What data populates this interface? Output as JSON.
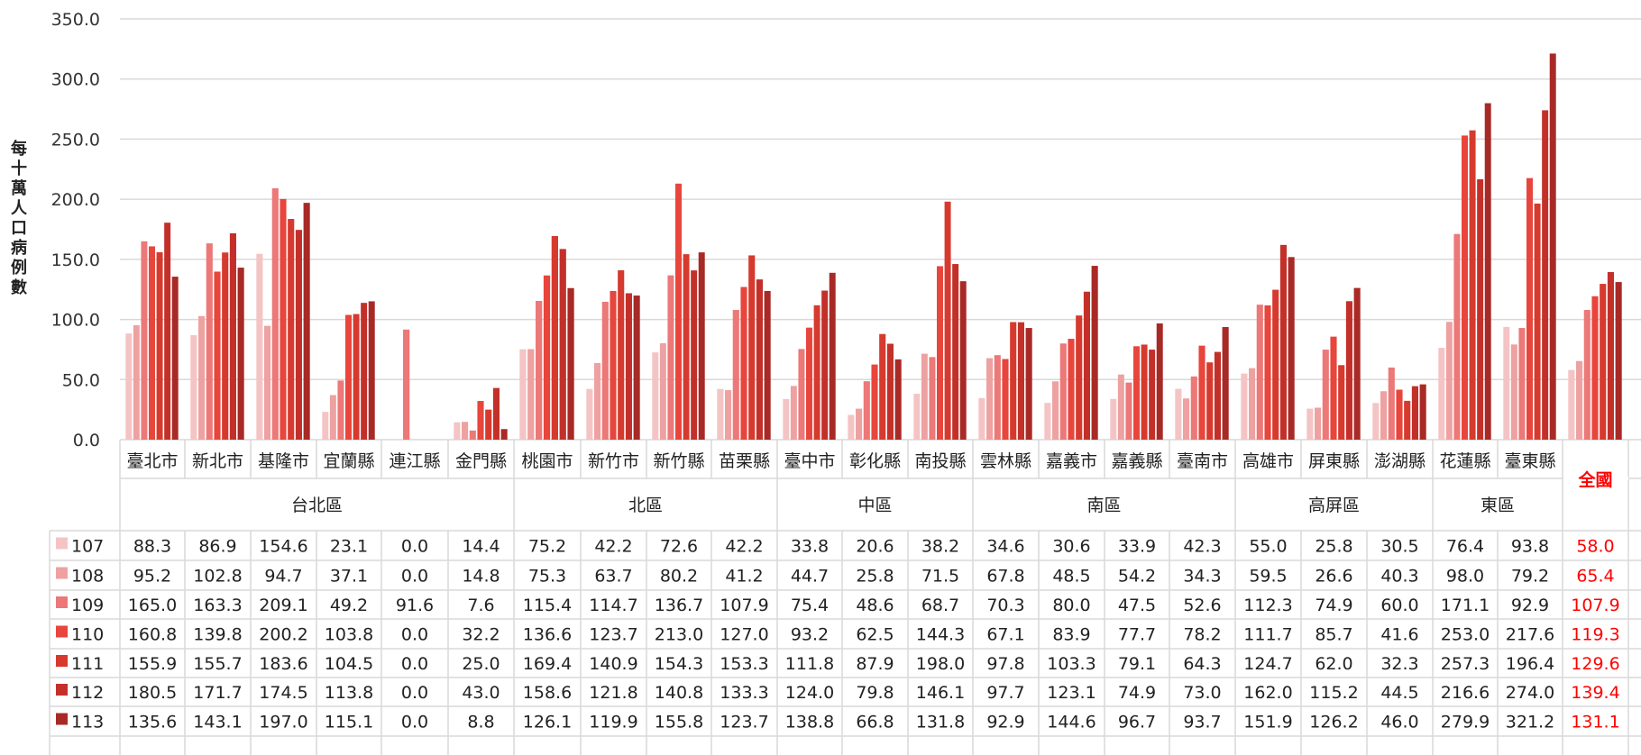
{
  "chart_data": {
    "type": "bar",
    "ylabel": "每十萬人口病例數",
    "ylim": [
      0,
      350
    ],
    "yticks": [
      "0.0",
      "50.0",
      "100.0",
      "150.0",
      "200.0",
      "250.0",
      "300.0",
      "350.0"
    ],
    "grid": true,
    "categories": [
      "臺北市",
      "新北市",
      "基隆市",
      "宜蘭縣",
      "連江縣",
      "金門縣",
      "桃園市",
      "新竹市",
      "新竹縣",
      "苗栗縣",
      "臺中市",
      "彰化縣",
      "南投縣",
      "雲林縣",
      "嘉義市",
      "嘉義縣",
      "臺南市",
      "高雄市",
      "屏東縣",
      "澎湖縣",
      "花蓮縣",
      "臺東縣",
      "全國"
    ],
    "regions": [
      {
        "name": "台北區",
        "span": 6
      },
      {
        "name": "北區",
        "span": 4
      },
      {
        "name": "中區",
        "span": 3
      },
      {
        "name": "南區",
        "span": 4
      },
      {
        "name": "高屏區",
        "span": 3
      },
      {
        "name": "東區",
        "span": 2
      },
      {
        "name": "全國",
        "span": 1
      }
    ],
    "series": [
      {
        "name": "107",
        "color": "#f4c4c4",
        "values": [
          "88.3",
          "86.9",
          "154.6",
          "23.1",
          "0.0",
          "14.4",
          "75.2",
          "42.2",
          "72.6",
          "42.2",
          "33.8",
          "20.6",
          "38.2",
          "34.6",
          "30.6",
          "33.9",
          "42.3",
          "55.0",
          "25.8",
          "30.5",
          "76.4",
          "93.8",
          "58.0"
        ]
      },
      {
        "name": "108",
        "color": "#eea1a1",
        "values": [
          "95.2",
          "102.8",
          "94.7",
          "37.1",
          "0.0",
          "14.8",
          "75.3",
          "63.7",
          "80.2",
          "41.2",
          "44.7",
          "25.8",
          "71.5",
          "67.8",
          "48.5",
          "54.2",
          "34.3",
          "59.5",
          "26.6",
          "40.3",
          "98.0",
          "79.2",
          "65.4"
        ]
      },
      {
        "name": "109",
        "color": "#ec7878",
        "values": [
          "165.0",
          "163.3",
          "209.1",
          "49.2",
          "91.6",
          "7.6",
          "115.4",
          "114.7",
          "136.7",
          "107.9",
          "75.4",
          "48.6",
          "68.7",
          "70.3",
          "80.0",
          "47.5",
          "52.6",
          "112.3",
          "74.9",
          "60.0",
          "171.1",
          "92.9",
          "107.9"
        ]
      },
      {
        "name": "110",
        "color": "#e8453c",
        "values": [
          "160.8",
          "139.8",
          "200.2",
          "103.8",
          "0.0",
          "32.2",
          "136.6",
          "123.7",
          "213.0",
          "127.0",
          "93.2",
          "62.5",
          "144.3",
          "67.1",
          "83.9",
          "77.7",
          "78.2",
          "111.7",
          "85.7",
          "41.6",
          "253.0",
          "217.6",
          "119.3"
        ]
      },
      {
        "name": "111",
        "color": "#d63a2e",
        "values": [
          "155.9",
          "155.7",
          "183.6",
          "104.5",
          "0.0",
          "25.0",
          "169.4",
          "140.9",
          "154.3",
          "153.3",
          "111.8",
          "87.9",
          "198.0",
          "97.8",
          "103.3",
          "79.1",
          "64.3",
          "124.7",
          "62.0",
          "32.3",
          "257.3",
          "196.4",
          "129.6"
        ]
      },
      {
        "name": "112",
        "color": "#c3302a",
        "values": [
          "180.5",
          "171.7",
          "174.5",
          "113.8",
          "0.0",
          "43.0",
          "158.6",
          "121.8",
          "140.8",
          "133.3",
          "124.0",
          "79.8",
          "146.1",
          "97.7",
          "123.1",
          "74.9",
          "73.0",
          "162.0",
          "115.2",
          "44.5",
          "216.6",
          "274.0",
          "139.4"
        ]
      },
      {
        "name": "113",
        "color": "#a82a26",
        "values": [
          "135.6",
          "143.1",
          "197.0",
          "115.1",
          "0.0",
          "8.8",
          "126.1",
          "119.9",
          "155.8",
          "123.7",
          "138.8",
          "66.8",
          "131.8",
          "92.9",
          "144.6",
          "96.7",
          "93.7",
          "151.9",
          "126.2",
          "46.0",
          "279.9",
          "321.2",
          "131.1"
        ]
      }
    ],
    "highlight_color": "#ff0000"
  }
}
